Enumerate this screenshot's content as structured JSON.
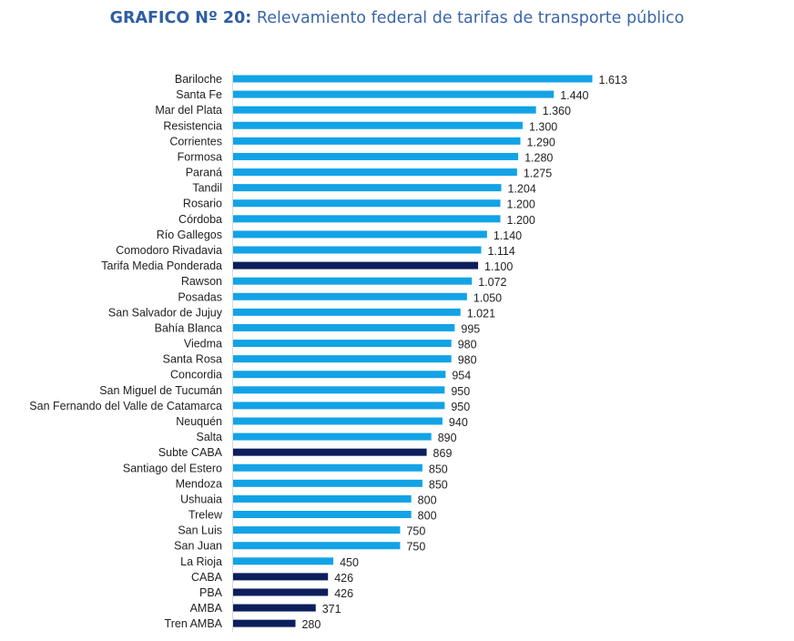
{
  "title": {
    "prefix": "GRAFICO Nº 20:",
    "text": " Relevamiento federal de tarifas de transporte público"
  },
  "colors": {
    "regular": "#12a3e6",
    "highlight": "#0c1f5c",
    "title": "#2f5ea3"
  },
  "chart_data": {
    "type": "bar",
    "orientation": "horizontal",
    "title": "GRAFICO Nº 20: Relevamiento federal de tarifas de transporte público",
    "xlabel": "",
    "ylabel": "",
    "xlim": [
      0,
      1613
    ],
    "grid": false,
    "legend": "none",
    "categories": [
      "Bariloche",
      "Santa Fe",
      "Mar del Plata",
      "Resistencia",
      "Corrientes",
      "Formosa",
      "Paraná",
      "Tandil",
      "Rosario",
      "Córdoba",
      "Río Gallegos",
      "Comodoro Rivadavia",
      "Tarifa Media Ponderada",
      "Rawson",
      "Posadas",
      "San Salvador de Jujuy",
      "Bahía Blanca",
      "Viedma",
      "Santa Rosa",
      "Concordia",
      "San Miguel de Tucumán",
      "San Fernando del Valle de Catamarca",
      "Neuquén",
      "Salta",
      "Subte CABA",
      "Santiago del Estero",
      "Mendoza",
      "Ushuaia",
      "Trelew",
      "San Luis",
      "San Juan",
      "La Rioja",
      "CABA",
      "PBA",
      "AMBA",
      "Tren AMBA"
    ],
    "values": [
      1613,
      1440,
      1360,
      1300,
      1290,
      1280,
      1275,
      1204,
      1200,
      1200,
      1140,
      1114,
      1100,
      1072,
      1050,
      1021,
      995,
      980,
      980,
      954,
      950,
      950,
      940,
      890,
      869,
      850,
      850,
      800,
      800,
      750,
      750,
      450,
      426,
      426,
      371,
      280
    ],
    "labels": [
      "1.613",
      "1.440",
      "1.360",
      "1.300",
      "1.290",
      "1.280",
      "1.275",
      "1.204",
      "1.200",
      "1.200",
      "1.140",
      "1.114",
      "1.100",
      "1.072",
      "1.050",
      "1.021",
      "995",
      "980",
      "980",
      "954",
      "950",
      "950",
      "940",
      "890",
      "869",
      "850",
      "850",
      "800",
      "800",
      "750",
      "750",
      "450",
      "426",
      "426",
      "371",
      "280"
    ],
    "highlighted": [
      "Tarifa Media Ponderada",
      "Subte CABA",
      "CABA",
      "PBA",
      "AMBA",
      "Tren AMBA"
    ]
  }
}
